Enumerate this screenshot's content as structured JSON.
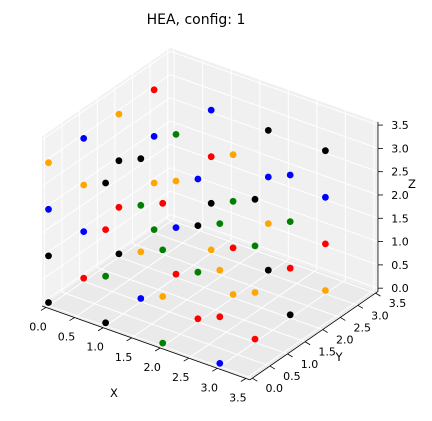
{
  "chart_data": {
    "type": "scatter",
    "projection": "3d",
    "title": "HEA, config: 1",
    "xlabel": "X",
    "ylabel": "Y",
    "zlabel": "Z",
    "xlim": [
      0,
      3.5
    ],
    "ylim": [
      0,
      3.5
    ],
    "zlim": [
      0,
      3.5
    ],
    "x_ticks": [
      "0.0",
      "0.5",
      "1.0",
      "1.5",
      "2.0",
      "2.5",
      "3.0",
      "3.5"
    ],
    "y_ticks": [
      "0.0",
      "0.5",
      "1.0",
      "1.5",
      "2.0",
      "2.5",
      "3.0",
      "3.5"
    ],
    "z_ticks": [
      "0.0",
      "0.5",
      "1.0",
      "1.5",
      "2.0",
      "2.5",
      "3.0",
      "3.5"
    ],
    "grid": true,
    "colors": [
      "#000000",
      "#0000ff",
      "#ff0000",
      "#ffa500",
      "#008000"
    ],
    "points": [
      {
        "x": 0,
        "y": 0,
        "z": 0,
        "c": 0
      },
      {
        "x": 0,
        "y": 0,
        "z": 1,
        "c": 0
      },
      {
        "x": 0,
        "y": 0,
        "z": 2,
        "c": 1
      },
      {
        "x": 0,
        "y": 0,
        "z": 3,
        "c": 3
      },
      {
        "x": 0,
        "y": 1,
        "z": 0,
        "c": 2
      },
      {
        "x": 0,
        "y": 1,
        "z": 1,
        "c": 1
      },
      {
        "x": 0,
        "y": 1,
        "z": 2,
        "c": 3
      },
      {
        "x": 0,
        "y": 1,
        "z": 3,
        "c": 1
      },
      {
        "x": 0,
        "y": 2,
        "z": 0,
        "c": 0
      },
      {
        "x": 0,
        "y": 2,
        "z": 1,
        "c": 2
      },
      {
        "x": 0,
        "y": 2,
        "z": 2,
        "c": 0
      },
      {
        "x": 0,
        "y": 2,
        "z": 3,
        "c": 3
      },
      {
        "x": 0,
        "y": 3,
        "z": 0,
        "c": 4
      },
      {
        "x": 0,
        "y": 3,
        "z": 1,
        "c": 3
      },
      {
        "x": 0,
        "y": 3,
        "z": 2,
        "c": 1
      },
      {
        "x": 0,
        "y": 3,
        "z": 3,
        "c": 2
      },
      {
        "x": 1,
        "y": 0,
        "z": 0,
        "c": 0
      },
      {
        "x": 1,
        "y": 0,
        "z": 1,
        "c": 4
      },
      {
        "x": 1,
        "y": 0,
        "z": 2,
        "c": 2
      },
      {
        "x": 1,
        "y": 0,
        "z": 3,
        "c": 0
      },
      {
        "x": 1,
        "y": 1,
        "z": 0,
        "c": 1
      },
      {
        "x": 1,
        "y": 1,
        "z": 1,
        "c": 3
      },
      {
        "x": 1,
        "y": 1,
        "z": 2,
        "c": 4
      },
      {
        "x": 1,
        "y": 1,
        "z": 3,
        "c": 0
      },
      {
        "x": 1,
        "y": 2,
        "z": 0,
        "c": 2
      },
      {
        "x": 1,
        "y": 2,
        "z": 1,
        "c": 1
      },
      {
        "x": 1,
        "y": 2,
        "z": 2,
        "c": 3
      },
      {
        "x": 1,
        "y": 2,
        "z": 3,
        "c": 4
      },
      {
        "x": 1,
        "y": 3,
        "z": 0,
        "c": 3
      },
      {
        "x": 1,
        "y": 3,
        "z": 1,
        "c": 0
      },
      {
        "x": 1,
        "y": 3,
        "z": 2,
        "c": 2
      },
      {
        "x": 1,
        "y": 3,
        "z": 3,
        "c": 1
      },
      {
        "x": 2,
        "y": 0,
        "z": 0,
        "c": 4
      },
      {
        "x": 2,
        "y": 0,
        "z": 1,
        "c": 3
      },
      {
        "x": 2,
        "y": 0,
        "z": 2,
        "c": 4
      },
      {
        "x": 2,
        "y": 0,
        "z": 3,
        "c": 2
      },
      {
        "x": 2,
        "y": 1,
        "z": 0,
        "c": 2
      },
      {
        "x": 2,
        "y": 1,
        "z": 1,
        "c": 4
      },
      {
        "x": 2,
        "y": 1,
        "z": 2,
        "c": 0
      },
      {
        "x": 2,
        "y": 1,
        "z": 3,
        "c": 1
      },
      {
        "x": 2,
        "y": 2,
        "z": 0,
        "c": 3
      },
      {
        "x": 2,
        "y": 2,
        "z": 1,
        "c": 2
      },
      {
        "x": 2,
        "y": 2,
        "z": 2,
        "c": 4
      },
      {
        "x": 2,
        "y": 2,
        "z": 3,
        "c": 3
      },
      {
        "x": 2,
        "y": 3,
        "z": 0,
        "c": 0
      },
      {
        "x": 2,
        "y": 3,
        "z": 1,
        "c": 3
      },
      {
        "x": 2,
        "y": 3,
        "z": 2,
        "c": 1
      },
      {
        "x": 2,
        "y": 3,
        "z": 3,
        "c": 0
      },
      {
        "x": 3,
        "y": 0,
        "z": 0,
        "c": 1
      },
      {
        "x": 3,
        "y": 0,
        "z": 1,
        "c": 2
      },
      {
        "x": 3,
        "y": 0,
        "z": 2,
        "c": 3
      },
      {
        "x": 3,
        "y": 0,
        "z": 3,
        "c": 4
      },
      {
        "x": 3,
        "y": 1,
        "z": 0,
        "c": 2
      },
      {
        "x": 3,
        "y": 1,
        "z": 1,
        "c": 3
      },
      {
        "x": 3,
        "y": 1,
        "z": 2,
        "c": 4
      },
      {
        "x": 3,
        "y": 1,
        "z": 3,
        "c": 0
      },
      {
        "x": 3,
        "y": 2,
        "z": 0,
        "c": 0
      },
      {
        "x": 3,
        "y": 2,
        "z": 1,
        "c": 2
      },
      {
        "x": 3,
        "y": 2,
        "z": 2,
        "c": 4
      },
      {
        "x": 3,
        "y": 2,
        "z": 3,
        "c": 1
      },
      {
        "x": 3,
        "y": 3,
        "z": 0,
        "c": 3
      },
      {
        "x": 3,
        "y": 3,
        "z": 1,
        "c": 2
      },
      {
        "x": 3,
        "y": 3,
        "z": 2,
        "c": 1
      },
      {
        "x": 3,
        "y": 3,
        "z": 3,
        "c": 0
      }
    ]
  }
}
